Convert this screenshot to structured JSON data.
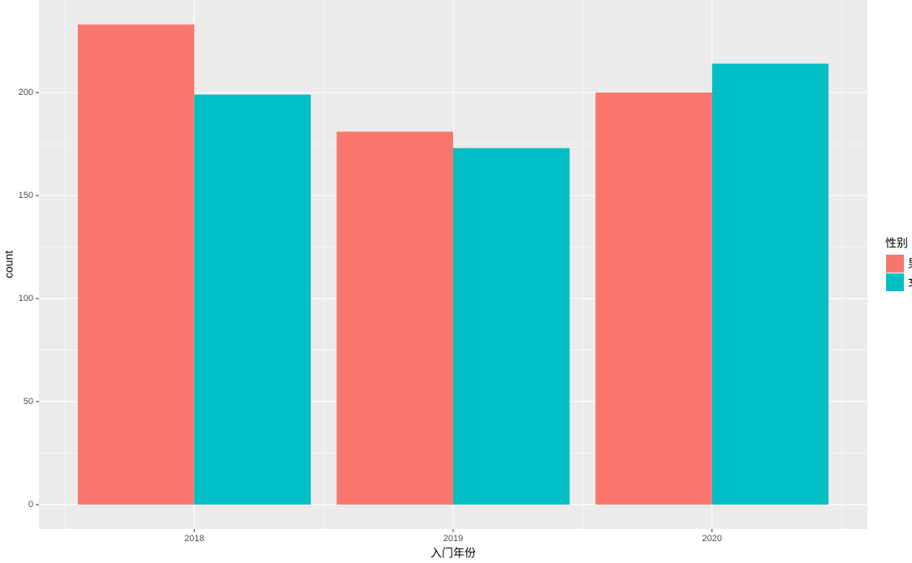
{
  "chart_data": {
    "type": "bar",
    "x_label": "入门年份",
    "y_label": "count",
    "legend_title": "性别",
    "categories": [
      "2018",
      "2019",
      "2020"
    ],
    "series": [
      {
        "name": "男",
        "color": "#F8766D",
        "values": [
          233,
          181,
          200
        ]
      },
      {
        "name": "女",
        "color": "#00BFC4",
        "values": [
          199,
          173,
          214
        ]
      }
    ],
    "ylim": [
      -11.8,
      244.9
    ],
    "yticks": [
      0,
      50,
      100,
      150,
      200
    ],
    "grid": true,
    "legend": "right"
  }
}
